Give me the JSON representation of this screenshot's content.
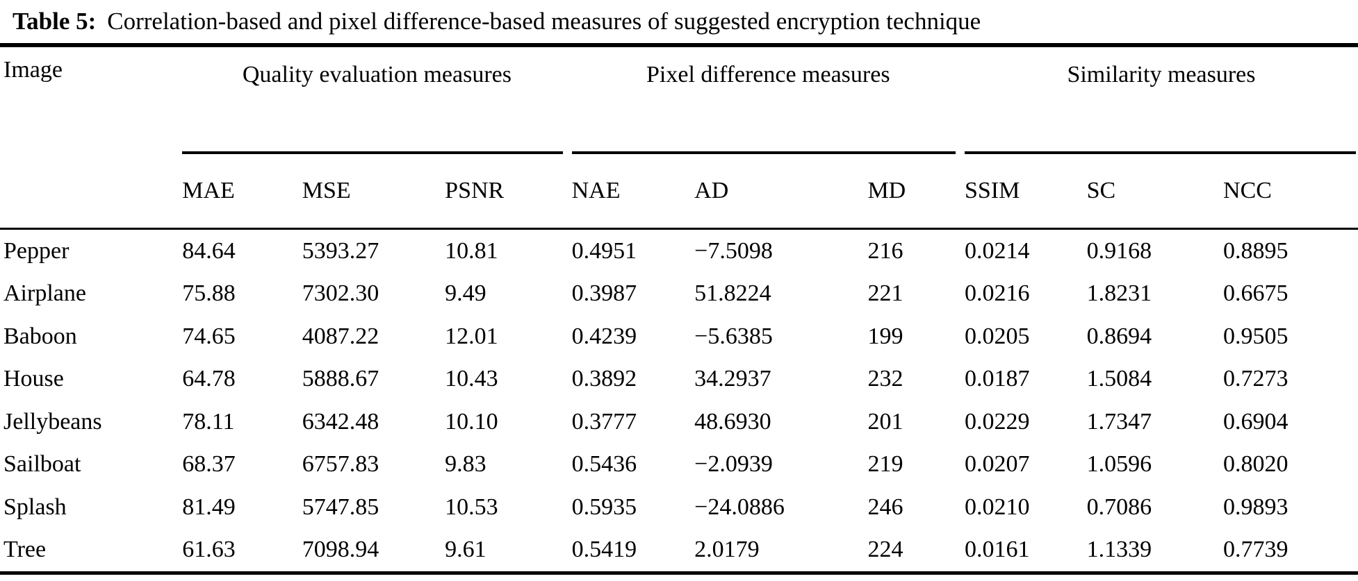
{
  "caption": {
    "label": "Table 5:",
    "text": "Correlation-based and pixel difference-based measures of suggested encryption technique"
  },
  "table": {
    "row_header": "Image",
    "groups": [
      {
        "name": "Quality evaluation measures",
        "columns": [
          "MAE",
          "MSE",
          "PSNR"
        ]
      },
      {
        "name": "Pixel difference measures",
        "columns": [
          "NAE",
          "AD",
          "MD"
        ]
      },
      {
        "name": "Similarity measures",
        "columns": [
          "SSIM",
          "SC",
          "NCC"
        ]
      }
    ],
    "rows": [
      [
        "Pepper",
        "84.64",
        "5393.27",
        "10.81",
        "0.4951",
        "−7.5098",
        "216",
        "0.0214",
        "0.9168",
        "0.8895"
      ],
      [
        "Airplane",
        "75.88",
        "7302.30",
        "9.49",
        "0.3987",
        "51.8224",
        "221",
        "0.0216",
        "1.8231",
        "0.6675"
      ],
      [
        "Baboon",
        "74.65",
        "4087.22",
        "12.01",
        "0.4239",
        "−5.6385",
        "199",
        "0.0205",
        "0.8694",
        "0.9505"
      ],
      [
        "House",
        "64.78",
        "5888.67",
        "10.43",
        "0.3892",
        "34.2937",
        "232",
        "0.0187",
        "1.5084",
        "0.7273"
      ],
      [
        "Jellybeans",
        "78.11",
        "6342.48",
        "10.10",
        "0.3777",
        "48.6930",
        "201",
        "0.0229",
        "1.7347",
        "0.6904"
      ],
      [
        "Sailboat",
        "68.37",
        "6757.83",
        "9.83",
        "0.5436",
        "−2.0939",
        "219",
        "0.0207",
        "1.0596",
        "0.8020"
      ],
      [
        "Splash",
        "81.49",
        "5747.85",
        "10.53",
        "0.5935",
        "−24.0886",
        "246",
        "0.0210",
        "0.7086",
        "0.9893"
      ],
      [
        "Tree",
        "61.63",
        "7098.94",
        "9.61",
        "0.5419",
        "2.0179",
        "224",
        "0.0161",
        "1.1339",
        "0.7739"
      ]
    ]
  },
  "colors": {
    "text": "#000000",
    "background": "#ffffff",
    "rule": "#000000"
  },
  "chart_data": {
    "type": "table",
    "title": "Table 5: Correlation-based and pixel difference-based measures of suggested encryption technique",
    "columns": [
      "Image",
      "MAE",
      "MSE",
      "PSNR",
      "NAE",
      "AD",
      "MD",
      "SSIM",
      "SC",
      "NCC"
    ],
    "column_groups": [
      {
        "name": "Quality evaluation measures",
        "columns": [
          "MAE",
          "MSE",
          "PSNR"
        ]
      },
      {
        "name": "Pixel difference measures",
        "columns": [
          "NAE",
          "AD",
          "MD"
        ]
      },
      {
        "name": "Similarity measures",
        "columns": [
          "SSIM",
          "SC",
          "NCC"
        ]
      }
    ],
    "rows": [
      [
        "Pepper",
        84.64,
        5393.27,
        10.81,
        0.4951,
        -7.5098,
        216,
        0.0214,
        0.9168,
        0.8895
      ],
      [
        "Airplane",
        75.88,
        7302.3,
        9.49,
        0.3987,
        51.8224,
        221,
        0.0216,
        1.8231,
        0.6675
      ],
      [
        "Baboon",
        74.65,
        4087.22,
        12.01,
        0.4239,
        -5.6385,
        199,
        0.0205,
        0.8694,
        0.9505
      ],
      [
        "House",
        64.78,
        5888.67,
        10.43,
        0.3892,
        34.2937,
        232,
        0.0187,
        1.5084,
        0.7273
      ],
      [
        "Jellybeans",
        78.11,
        6342.48,
        10.1,
        0.3777,
        48.693,
        201,
        0.0229,
        1.7347,
        0.6904
      ],
      [
        "Sailboat",
        68.37,
        6757.83,
        9.83,
        0.5436,
        -2.0939,
        219,
        0.0207,
        1.0596,
        0.802
      ],
      [
        "Splash",
        81.49,
        5747.85,
        10.53,
        0.5935,
        -24.0886,
        246,
        0.021,
        0.7086,
        0.9893
      ],
      [
        "Tree",
        61.63,
        7098.94,
        9.61,
        0.5419,
        2.0179,
        224,
        0.0161,
        1.1339,
        0.7739
      ]
    ]
  }
}
